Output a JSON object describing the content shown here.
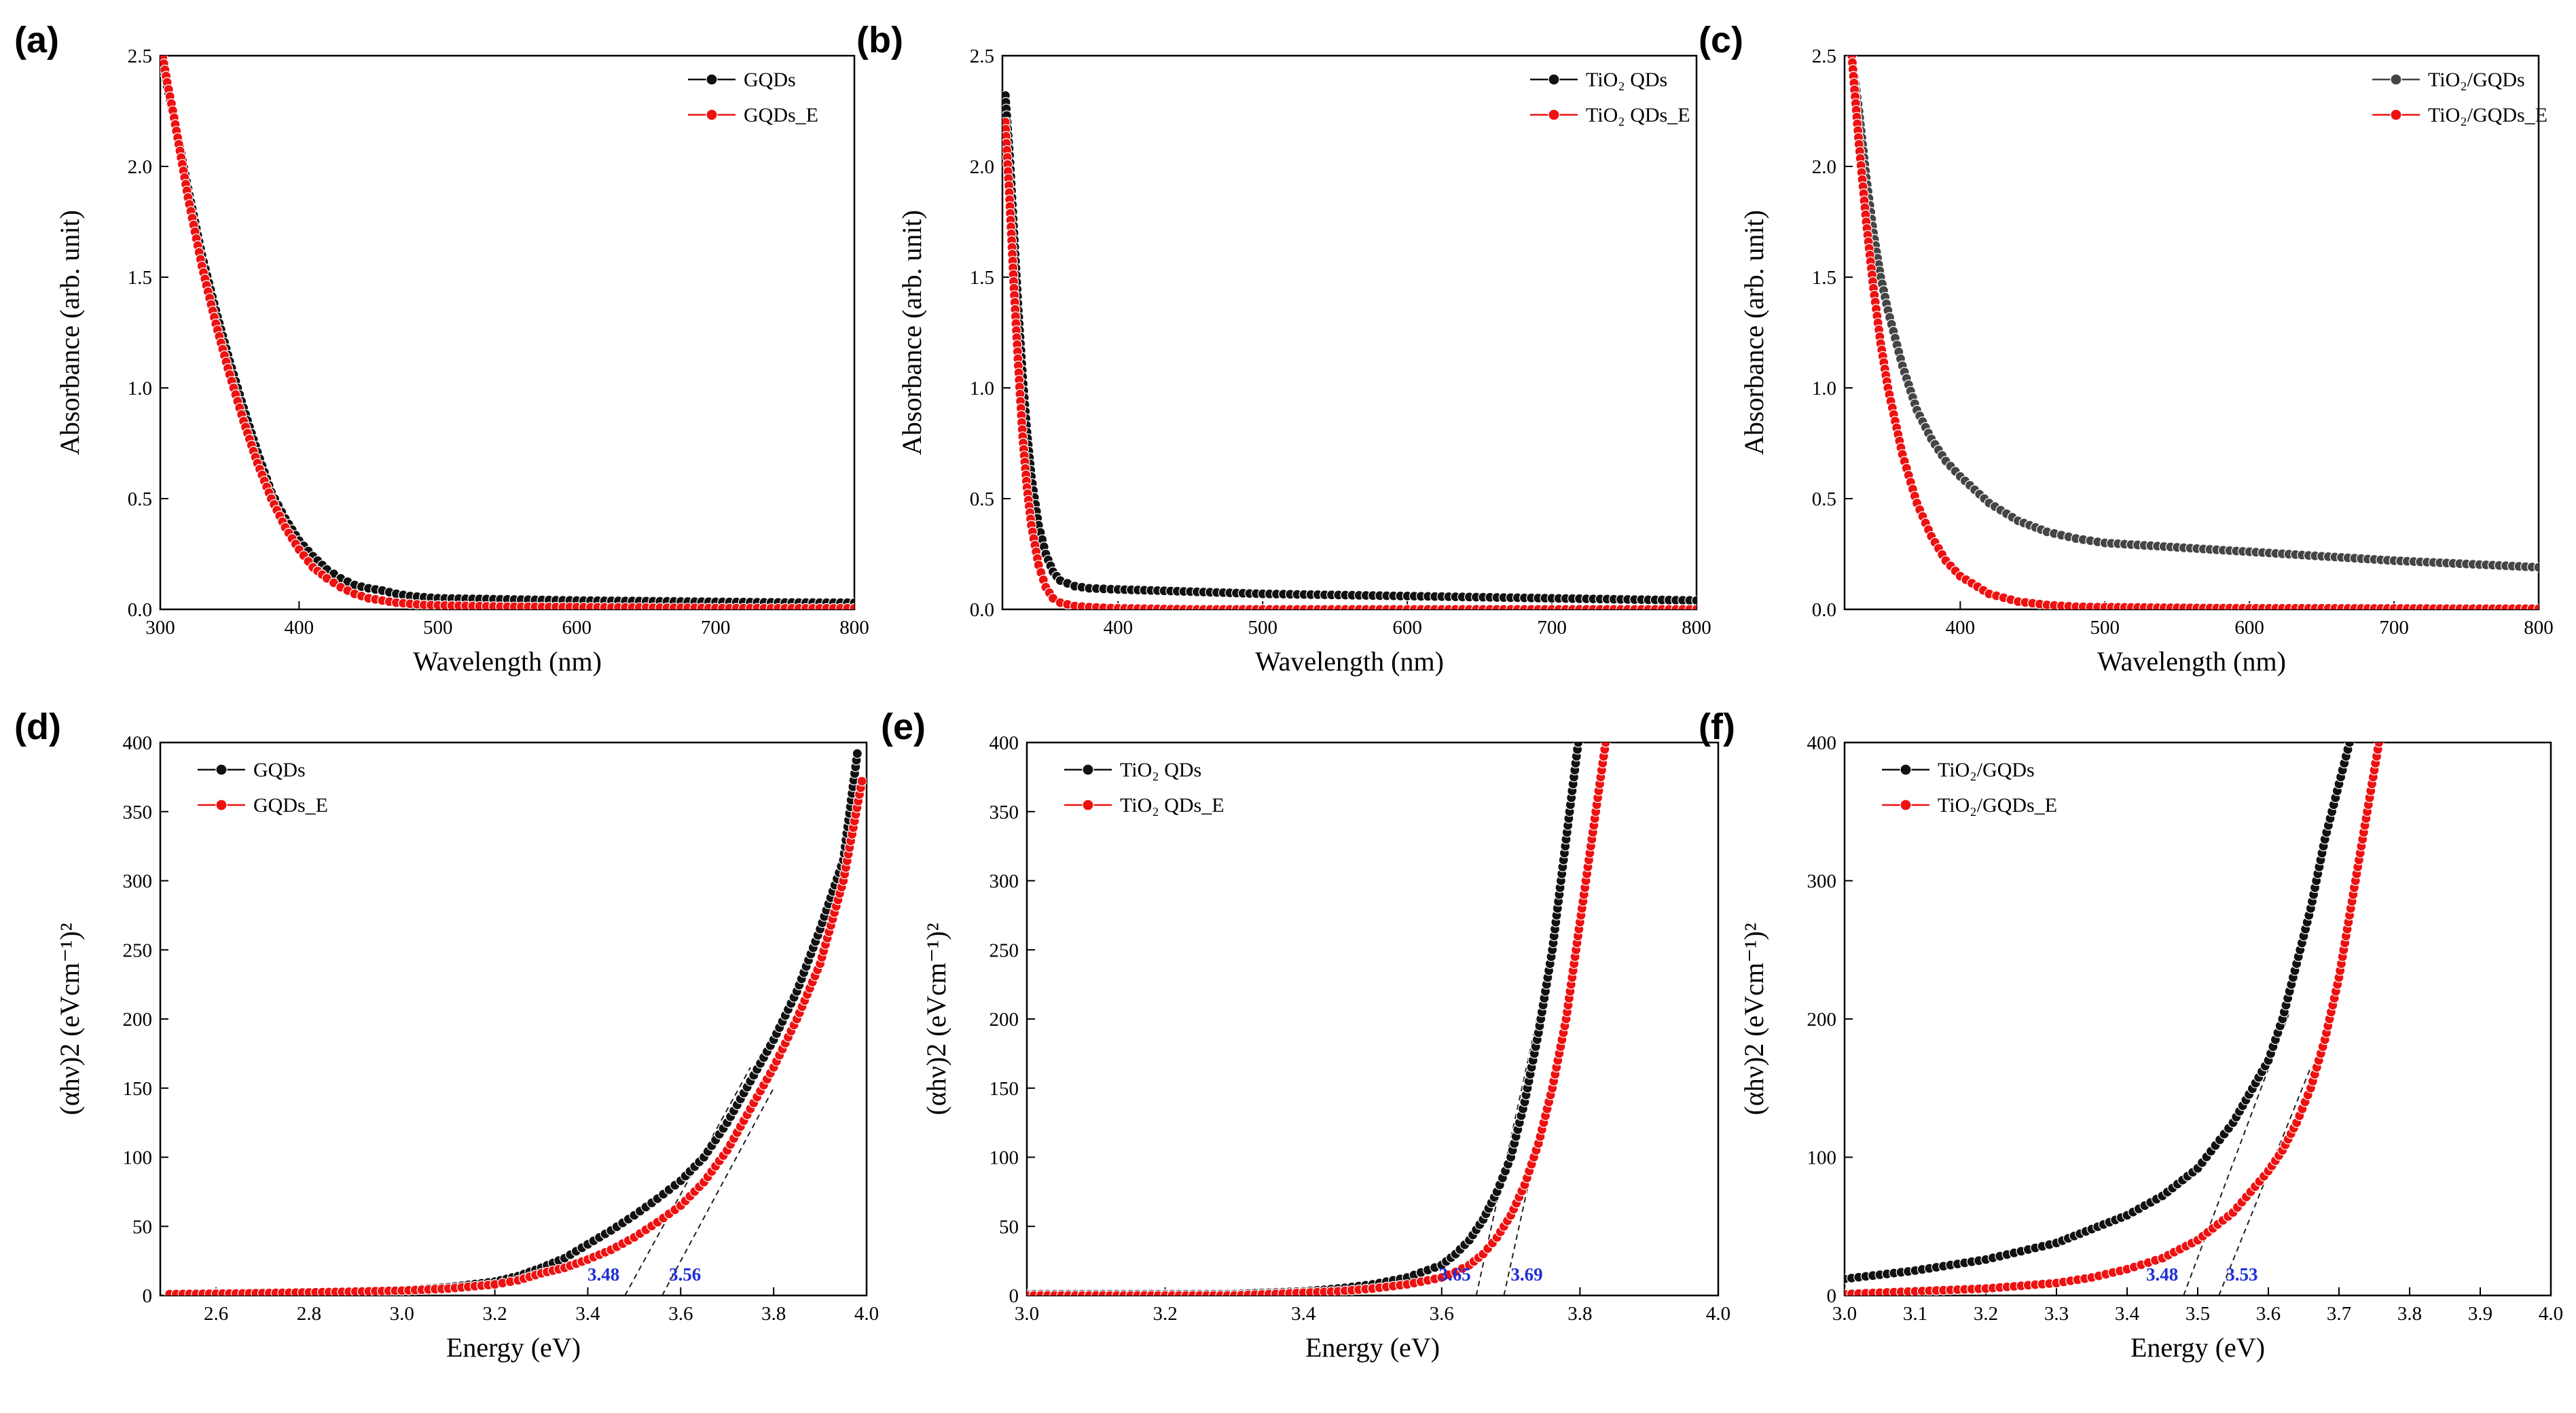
{
  "figure": {
    "colors": {
      "black_series": "#111111",
      "red_series": "#ee1111",
      "gray_series": "#454545",
      "annotation": "#1f2fd6"
    }
  },
  "chart_data": [
    {
      "panel": "(a)",
      "type": "scatter-line",
      "xlabel": "Wavelength (nm)",
      "ylabel": "Absorbance (arb. unit)",
      "xlim": [
        300,
        800
      ],
      "ylim": [
        0,
        2.5
      ],
      "xticks": [
        "300",
        "400",
        "500",
        "600",
        "700",
        "800"
      ],
      "yticks": [
        "0.0",
        "0.5",
        "1.0",
        "1.5",
        "2.0",
        "2.5"
      ],
      "legend_position": "top-right",
      "series": [
        {
          "name": "GQDs",
          "color": "#111111",
          "x": [
            301,
            305,
            310,
            315,
            320,
            330,
            340,
            350,
            360,
            370,
            380,
            390,
            400,
            410,
            420,
            430,
            440,
            450,
            460,
            470,
            480,
            490,
            500,
            550,
            600,
            650,
            700,
            750,
            800
          ],
          "y": [
            2.5,
            2.36,
            2.22,
            2.06,
            1.9,
            1.6,
            1.35,
            1.12,
            0.91,
            0.71,
            0.53,
            0.41,
            0.31,
            0.24,
            0.18,
            0.14,
            0.11,
            0.095,
            0.085,
            0.07,
            0.06,
            0.055,
            0.05,
            0.045,
            0.04,
            0.037,
            0.034,
            0.031,
            0.03
          ]
        },
        {
          "name": "GQDs_E",
          "color": "#ee1111",
          "x": [
            301,
            305,
            310,
            315,
            320,
            330,
            340,
            350,
            360,
            370,
            380,
            390,
            400,
            410,
            420,
            430,
            440,
            450,
            460,
            470,
            480,
            490,
            500,
            550,
            600,
            650,
            700,
            750,
            800
          ],
          "y": [
            2.52,
            2.38,
            2.22,
            2.04,
            1.86,
            1.55,
            1.29,
            1.06,
            0.85,
            0.66,
            0.5,
            0.37,
            0.27,
            0.19,
            0.14,
            0.1,
            0.07,
            0.05,
            0.04,
            0.03,
            0.025,
            0.02,
            0.018,
            0.012,
            0.01,
            0.008,
            0.006,
            0.005,
            0.005
          ]
        }
      ]
    },
    {
      "panel": "(b)",
      "type": "scatter-line",
      "xlabel": "Wavelength (nm)",
      "ylabel": "Absorbance (arb. unit)",
      "xlim": [
        320,
        800
      ],
      "ylim": [
        0,
        2.5
      ],
      "xticks": [
        "400",
        "500",
        "600",
        "700",
        "800"
      ],
      "yticks": [
        "0.0",
        "0.5",
        "1.0",
        "1.5",
        "2.0",
        "2.5"
      ],
      "legend_position": "top-right",
      "series": [
        {
          "name": "TiO₂ QDs",
          "color": "#111111",
          "x": [
            322,
            325,
            328,
            331,
            334,
            337,
            340,
            345,
            350,
            355,
            360,
            370,
            380,
            400,
            450,
            500,
            600,
            700,
            800
          ],
          "y": [
            2.32,
            2.05,
            1.7,
            1.35,
            1.05,
            0.8,
            0.6,
            0.38,
            0.25,
            0.17,
            0.13,
            0.105,
            0.095,
            0.09,
            0.08,
            0.07,
            0.06,
            0.05,
            0.04
          ]
        },
        {
          "name": "TiO₂ QDs_E",
          "color": "#ee1111",
          "x": [
            322,
            325,
            328,
            331,
            334,
            337,
            340,
            345,
            350,
            355,
            360,
            370,
            380,
            400,
            450,
            500,
            600,
            700,
            800
          ],
          "y": [
            2.2,
            1.85,
            1.45,
            1.1,
            0.78,
            0.55,
            0.38,
            0.2,
            0.1,
            0.05,
            0.03,
            0.015,
            0.01,
            0.005,
            0.0,
            0.0,
            0.0,
            0.0,
            0.0
          ]
        }
      ]
    },
    {
      "panel": "(c)",
      "type": "scatter-line",
      "xlabel": "Wavelength (nm)",
      "ylabel": "Absorbance (arb. unit)",
      "xlim": [
        320,
        800
      ],
      "ylim": [
        0,
        2.5
      ],
      "xticks": [
        "400",
        "500",
        "600",
        "700",
        "800"
      ],
      "yticks": [
        "0.0",
        "0.5",
        "1.0",
        "1.5",
        "2.0",
        "2.5"
      ],
      "legend_position": "top-right",
      "series": [
        {
          "name": "TiO₂/GQDs",
          "color": "#454545",
          "x": [
            325,
            330,
            335,
            340,
            345,
            350,
            360,
            370,
            380,
            390,
            400,
            420,
            440,
            460,
            480,
            500,
            550,
            600,
            650,
            700,
            750,
            800
          ],
          "y": [
            2.5,
            2.25,
            1.95,
            1.7,
            1.5,
            1.35,
            1.1,
            0.9,
            0.77,
            0.67,
            0.6,
            0.48,
            0.4,
            0.35,
            0.32,
            0.3,
            0.28,
            0.26,
            0.24,
            0.22,
            0.205,
            0.19
          ]
        },
        {
          "name": "TiO₂/GQDs_E",
          "color": "#ee1111",
          "x": [
            325,
            330,
            335,
            340,
            345,
            350,
            360,
            370,
            380,
            390,
            400,
            420,
            440,
            460,
            480,
            500,
            550,
            600,
            650,
            700,
            750,
            800
          ],
          "y": [
            2.5,
            2.1,
            1.75,
            1.45,
            1.2,
            1.0,
            0.7,
            0.48,
            0.33,
            0.22,
            0.15,
            0.07,
            0.035,
            0.02,
            0.012,
            0.01,
            0.007,
            0.005,
            0.005,
            0.004,
            0.003,
            0.003
          ]
        }
      ]
    },
    {
      "panel": "(d)",
      "type": "scatter-line",
      "xlabel": "Energy (eV)",
      "ylabel": "(αhν)2 (eVcm⁻¹)²",
      "xlim": [
        2.48,
        4.0
      ],
      "ylim": [
        0,
        400
      ],
      "xticks": [
        "2.6",
        "2.8",
        "3.0",
        "3.2",
        "3.4",
        "3.6",
        "3.8",
        "4.0"
      ],
      "yticks": [
        "0",
        "50",
        "100",
        "150",
        "200",
        "250",
        "300",
        "350",
        "400"
      ],
      "legend_position": "top-left",
      "annotations": [
        {
          "text": "3.48",
          "x": 3.48
        },
        {
          "text": "3.56",
          "x": 3.56
        }
      ],
      "tangents": [
        {
          "x0": 3.48,
          "x1": 3.75,
          "y1": 165
        },
        {
          "x0": 3.56,
          "x1": 3.8,
          "y1": 150
        }
      ],
      "series": [
        {
          "name": "GQDs",
          "color": "#111111",
          "x": [
            2.5,
            2.6,
            2.7,
            2.8,
            2.9,
            3.0,
            3.1,
            3.2,
            3.25,
            3.3,
            3.35,
            3.4,
            3.45,
            3.5,
            3.55,
            3.6,
            3.65,
            3.7,
            3.75,
            3.8,
            3.85,
            3.9,
            3.95,
            3.98
          ],
          "y": [
            1,
            1.5,
            2,
            2.5,
            3,
            4,
            6,
            10,
            14,
            20,
            27,
            37,
            47,
            58,
            70,
            83,
            100,
            125,
            155,
            185,
            220,
            265,
            315,
            392
          ]
        },
        {
          "name": "GQDs_E",
          "color": "#ee1111",
          "x": [
            2.5,
            2.6,
            2.7,
            2.8,
            2.9,
            3.0,
            3.1,
            3.2,
            3.25,
            3.3,
            3.35,
            3.4,
            3.45,
            3.5,
            3.55,
            3.6,
            3.65,
            3.7,
            3.75,
            3.8,
            3.85,
            3.9,
            3.95,
            3.99
          ],
          "y": [
            1,
            1.3,
            1.7,
            2.2,
            2.8,
            3.5,
            5,
            8,
            11,
            16,
            20,
            26,
            33,
            42,
            53,
            65,
            82,
            105,
            135,
            165,
            200,
            240,
            300,
            372
          ]
        }
      ]
    },
    {
      "panel": "(e)",
      "type": "scatter-line",
      "xlabel": "Energy (eV)",
      "ylabel": "(αhν)2 (eVcm⁻¹)²",
      "xlim": [
        3.0,
        4.0
      ],
      "ylim": [
        0,
        400
      ],
      "xticks": [
        "3.0",
        "3.2",
        "3.4",
        "3.6",
        "3.8",
        "4.0"
      ],
      "yticks": [
        "0",
        "50",
        "100",
        "150",
        "200",
        "250",
        "300",
        "350",
        "400"
      ],
      "legend_position": "top-left",
      "annotations": [
        {
          "text": "3.65",
          "x": 3.65
        },
        {
          "text": "3.69",
          "x": 3.69
        }
      ],
      "tangents": [
        {
          "x0": 3.65,
          "x1": 3.76,
          "y1": 250
        },
        {
          "x0": 3.69,
          "x1": 3.8,
          "y1": 250
        }
      ],
      "series": [
        {
          "name": "TiO₂ QDs",
          "color": "#111111",
          "x": [
            3.0,
            3.1,
            3.2,
            3.3,
            3.35,
            3.4,
            3.45,
            3.5,
            3.55,
            3.6,
            3.62,
            3.64,
            3.66,
            3.68,
            3.7,
            3.72,
            3.74,
            3.76,
            3.78,
            3.8
          ],
          "y": [
            1,
            1,
            1,
            1,
            2,
            3,
            5,
            8,
            13,
            22,
            30,
            40,
            55,
            75,
            100,
            140,
            190,
            250,
            330,
            410
          ]
        },
        {
          "name": "TiO₂ QDs_E",
          "color": "#ee1111",
          "x": [
            3.0,
            3.1,
            3.2,
            3.3,
            3.35,
            3.4,
            3.45,
            3.5,
            3.55,
            3.6,
            3.62,
            3.64,
            3.66,
            3.68,
            3.7,
            3.72,
            3.74,
            3.76,
            3.78,
            3.8,
            3.82,
            3.84
          ],
          "y": [
            0,
            0,
            0,
            0,
            1,
            2,
            3,
            5,
            8,
            13,
            17,
            22,
            30,
            42,
            58,
            80,
            110,
            150,
            200,
            270,
            340,
            410
          ]
        }
      ]
    },
    {
      "panel": "(f)",
      "type": "scatter-line",
      "xlabel": "Energy (eV)",
      "ylabel": "(αhν)2 (eVcm⁻¹)²",
      "xlim": [
        3.0,
        4.0
      ],
      "ylim": [
        0,
        400
      ],
      "xticks": [
        "3.0",
        "3.1",
        "3.2",
        "3.3",
        "3.4",
        "3.5",
        "3.6",
        "3.7",
        "3.8",
        "3.9",
        "4.0"
      ],
      "yticks": [
        "0",
        "100",
        "200",
        "300",
        "400"
      ],
      "legend_position": "top-left",
      "annotations": [
        {
          "text": "3.48",
          "x": 3.48
        },
        {
          "text": "3.53",
          "x": 3.53
        }
      ],
      "tangents": [
        {
          "x0": 3.48,
          "x1": 3.63,
          "y1": 205
        },
        {
          "x0": 3.53,
          "x1": 3.66,
          "y1": 165
        }
      ],
      "series": [
        {
          "name": "TiO₂/GQDs",
          "color": "#111111",
          "x": [
            3.0,
            3.05,
            3.1,
            3.15,
            3.2,
            3.25,
            3.3,
            3.35,
            3.4,
            3.45,
            3.5,
            3.55,
            3.6,
            3.62,
            3.64,
            3.66,
            3.68,
            3.7,
            3.72
          ],
          "y": [
            12,
            15,
            18,
            22,
            26,
            32,
            38,
            48,
            58,
            72,
            92,
            125,
            170,
            200,
            240,
            280,
            330,
            370,
            410
          ]
        },
        {
          "name": "TiO₂/GQDs_E",
          "color": "#ee1111",
          "x": [
            3.0,
            3.05,
            3.1,
            3.15,
            3.2,
            3.25,
            3.3,
            3.35,
            3.4,
            3.45,
            3.5,
            3.55,
            3.6,
            3.62,
            3.64,
            3.66,
            3.68,
            3.7,
            3.72,
            3.74,
            3.76
          ],
          "y": [
            1,
            2,
            3,
            4,
            5,
            7,
            9,
            13,
            19,
            27,
            40,
            60,
            90,
            105,
            125,
            150,
            185,
            230,
            290,
            350,
            410
          ]
        }
      ]
    }
  ]
}
